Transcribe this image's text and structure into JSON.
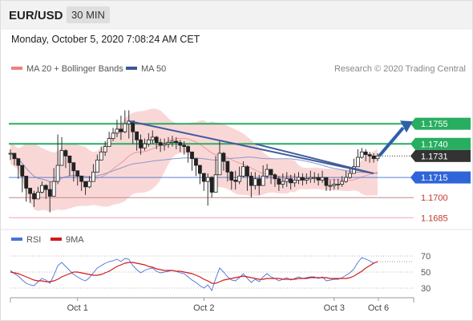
{
  "header": {
    "symbol": "EUR/USD",
    "timeframe": "30 MIN"
  },
  "timestamp": "Monday, October 5, 2020 7:08:24 AM CET",
  "legend": {
    "ma20_label": "MA 20 + Bollinger Bands",
    "ma50_label": "MA 50",
    "credit": "Research © 2020 Trading Central",
    "rsi_label": "RSI",
    "rsi_ma_label": "9MA"
  },
  "colors": {
    "bullish": "#27ae60",
    "support": "#5b7fd6",
    "resistance_line": "#c0504d",
    "bollinger": "#f5b7b7",
    "ma50": "#3b5998",
    "rsi": "#4a72d9",
    "rsi_ma": "#d11a1a",
    "last_price": "#333333",
    "forecast_arrow": "#2f5fa8"
  },
  "chart_data": [
    {
      "type": "candlestick",
      "title": "EUR/USD 30 MIN",
      "x_labels": [
        "Oct 1",
        "Oct 2",
        "Oct 3",
        "Oct 6"
      ],
      "last_price": 1.1731,
      "ylim": [
        1.1678,
        1.1788
      ],
      "levels": [
        {
          "value": 1.1755,
          "label": "1.1755",
          "kind": "resistance",
          "color": "#27ae60"
        },
        {
          "value": 1.174,
          "label": "1.1740",
          "kind": "resistance",
          "color": "#27ae60"
        },
        {
          "value": 1.1731,
          "label": "1.1731",
          "kind": "last",
          "color": "#333333"
        },
        {
          "value": 1.1715,
          "label": "1.1715",
          "kind": "pivot",
          "color": "#5b7fd6"
        },
        {
          "value": 1.17,
          "label": "1.1700",
          "kind": "support",
          "color": "#c0504d"
        },
        {
          "value": 1.1685,
          "label": "1.1685",
          "kind": "support",
          "color": "#c0504d"
        }
      ],
      "trendlines": [
        {
          "from": {
            "bar": 30,
            "price": 1.1757
          },
          "to": {
            "bar": 92,
            "price": 1.1718
          }
        },
        {
          "from": {
            "bar": 62,
            "price": 1.174
          },
          "to": {
            "bar": 92,
            "price": 1.1718
          }
        }
      ],
      "forecast": {
        "from_price": 1.1731,
        "to_price": 1.1755
      },
      "closes": [
        1.1733,
        1.1729,
        1.1724,
        1.1716,
        1.1707,
        1.1703,
        1.1699,
        1.1704,
        1.1709,
        1.1706,
        1.1701,
        1.1712,
        1.1724,
        1.1735,
        1.1731,
        1.1726,
        1.172,
        1.1716,
        1.1712,
        1.1708,
        1.1712,
        1.1719,
        1.1728,
        1.1734,
        1.1738,
        1.1744,
        1.1748,
        1.1751,
        1.1749,
        1.1755,
        1.1757,
        1.1749,
        1.1743,
        1.1737,
        1.174,
        1.1743,
        1.1745,
        1.1741,
        1.1739,
        1.174,
        1.1741,
        1.1742,
        1.1741,
        1.1739,
        1.1738,
        1.1734,
        1.1729,
        1.1724,
        1.1718,
        1.1712,
        1.1715,
        1.1704,
        1.1717,
        1.1733,
        1.1727,
        1.1719,
        1.1713,
        1.1712,
        1.1716,
        1.1723,
        1.1716,
        1.1709,
        1.1714,
        1.1709,
        1.1716,
        1.1721,
        1.1717,
        1.1714,
        1.171,
        1.1712,
        1.1714,
        1.1711,
        1.1713,
        1.1715,
        1.1713,
        1.1714,
        1.1715,
        1.1715,
        1.1713,
        1.1715,
        1.1709,
        1.1709,
        1.171,
        1.171,
        1.1712,
        1.1715,
        1.1718,
        1.1723,
        1.173,
        1.1734,
        1.1732,
        1.1731,
        1.1729,
        1.1731
      ],
      "highs": [
        1.1736,
        1.1732,
        1.1728,
        1.172,
        1.1711,
        1.1707,
        1.1705,
        1.1708,
        1.1712,
        1.171,
        1.1712,
        1.1722,
        1.1747,
        1.1745,
        1.1736,
        1.173,
        1.1724,
        1.172,
        1.1716,
        1.1712,
        1.1716,
        1.1725,
        1.1732,
        1.1738,
        1.1742,
        1.1749,
        1.1752,
        1.1758,
        1.1761,
        1.1765,
        1.1765,
        1.1757,
        1.1749,
        1.1747,
        1.1744,
        1.1748,
        1.175,
        1.1746,
        1.1744,
        1.1744,
        1.1745,
        1.1746,
        1.1745,
        1.1743,
        1.1742,
        1.1739,
        1.1733,
        1.1728,
        1.1722,
        1.1716,
        1.1718,
        1.1716,
        1.1731,
        1.1742,
        1.1734,
        1.1726,
        1.172,
        1.172,
        1.1723,
        1.1727,
        1.1724,
        1.1719,
        1.1719,
        1.1717,
        1.1724,
        1.1725,
        1.1721,
        1.1718,
        1.1716,
        1.1718,
        1.1719,
        1.1717,
        1.1718,
        1.1719,
        1.1718,
        1.1718,
        1.172,
        1.1719,
        1.1718,
        1.172,
        1.1715,
        1.1713,
        1.1714,
        1.1714,
        1.1716,
        1.172,
        1.1723,
        1.1729,
        1.1736,
        1.1737,
        1.1736,
        1.1734,
        1.1733,
        1.1733
      ],
      "lows": [
        1.1728,
        1.1724,
        1.1714,
        1.1704,
        1.1697,
        1.1696,
        1.1693,
        1.1699,
        1.1703,
        1.1699,
        1.1689,
        1.1702,
        1.171,
        1.1726,
        1.1722,
        1.1716,
        1.1712,
        1.1709,
        1.1705,
        1.1702,
        1.1707,
        1.1714,
        1.1722,
        1.1728,
        1.1731,
        1.1738,
        1.1742,
        1.1745,
        1.1743,
        1.1748,
        1.1744,
        1.174,
        1.1735,
        1.1732,
        1.1735,
        1.1738,
        1.174,
        1.1736,
        1.1734,
        1.1735,
        1.1737,
        1.1738,
        1.1736,
        1.1734,
        1.1732,
        1.1726,
        1.172,
        1.1716,
        1.171,
        1.1705,
        1.1694,
        1.17,
        1.1713,
        1.1724,
        1.172,
        1.1712,
        1.1706,
        1.1706,
        1.171,
        1.1715,
        1.1705,
        1.17,
        1.1706,
        1.1702,
        1.1711,
        1.1714,
        1.171,
        1.1708,
        1.1705,
        1.1707,
        1.1708,
        1.1706,
        1.1708,
        1.171,
        1.1709,
        1.171,
        1.1711,
        1.1711,
        1.1709,
        1.1711,
        1.1705,
        1.1705,
        1.1706,
        1.1706,
        1.1708,
        1.1711,
        1.1714,
        1.1719,
        1.1725,
        1.1729,
        1.1727,
        1.1726,
        1.1726,
        1.1727
      ]
    },
    {
      "type": "line",
      "title": "RSI",
      "x_labels": [
        "Oct 1",
        "Oct 2",
        "Oct 3",
        "Oct 6"
      ],
      "ylim": [
        20,
        80
      ],
      "ticks": [
        70,
        50,
        30
      ],
      "series": [
        {
          "name": "RSI",
          "values": [
            52,
            48,
            45,
            40,
            36,
            34,
            33,
            38,
            42,
            40,
            36,
            46,
            58,
            62,
            57,
            52,
            47,
            44,
            41,
            39,
            43,
            49,
            55,
            58,
            61,
            63,
            64,
            66,
            63,
            67,
            66,
            58,
            53,
            49,
            52,
            54,
            55,
            51,
            49,
            50,
            51,
            52,
            51,
            49,
            48,
            44,
            40,
            37,
            33,
            30,
            34,
            27,
            42,
            55,
            50,
            44,
            40,
            39,
            43,
            48,
            42,
            37,
            41,
            38,
            44,
            48,
            44,
            42,
            39,
            41,
            43,
            40,
            42,
            44,
            42,
            43,
            44,
            44,
            42,
            44,
            39,
            40,
            41,
            41,
            43,
            46,
            49,
            54,
            62,
            68,
            66,
            64,
            61,
            63
          ]
        },
        {
          "name": "9MA",
          "values": [
            50,
            49,
            48,
            46,
            44,
            42,
            40,
            39,
            39,
            38,
            38,
            39,
            41,
            44,
            46,
            48,
            50,
            50,
            49,
            48,
            47,
            46,
            46,
            47,
            49,
            51,
            54,
            57,
            59,
            61,
            62,
            62,
            61,
            60,
            59,
            57,
            56,
            54,
            53,
            52,
            52,
            52,
            51,
            51,
            50,
            49,
            48,
            46,
            44,
            41,
            39,
            36,
            36,
            38,
            40,
            41,
            42,
            43,
            44,
            45,
            44,
            43,
            42,
            41,
            41,
            42,
            42,
            42,
            42,
            41,
            41,
            41,
            41,
            42,
            42,
            42,
            43,
            43,
            43,
            43,
            43,
            42,
            42,
            42,
            42,
            42,
            43,
            45,
            48,
            51,
            55,
            58,
            61,
            63
          ]
        }
      ]
    }
  ]
}
